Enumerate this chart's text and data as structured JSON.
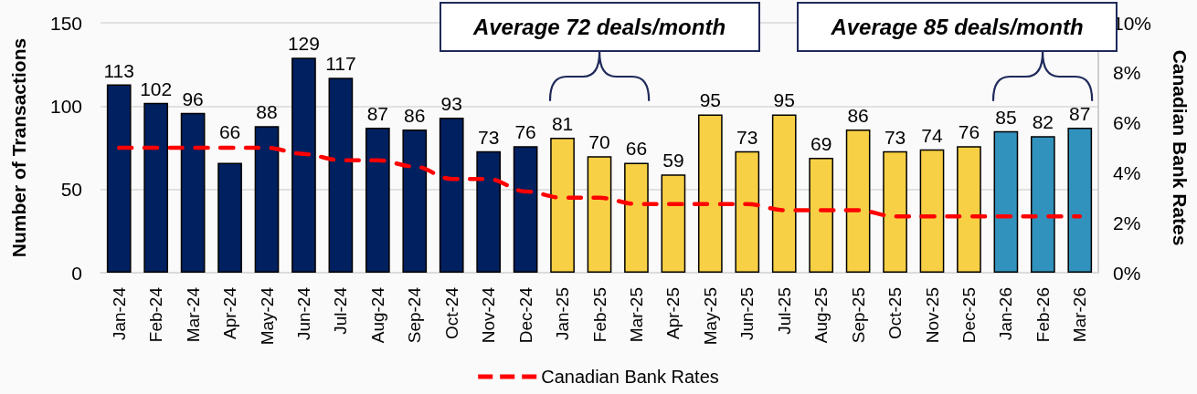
{
  "chart_data": {
    "type": "bar",
    "ylabel": "Number of Transactions",
    "y2label": "Canadian Bank Rates",
    "categories": [
      "Jan-24",
      "Feb-24",
      "Mar-24",
      "Apr-24",
      "May-24",
      "Jun-24",
      "Jul-24",
      "Aug-24",
      "Sep-24",
      "Oct-24",
      "Nov-24",
      "Dec-24",
      "Jan-25",
      "Feb-25",
      "Mar-25",
      "Apr-25",
      "May-25",
      "Jun-25",
      "Jul-25",
      "Aug-25",
      "Sep-25",
      "Oct-25",
      "Nov-25",
      "Dec-25",
      "Jan-26",
      "Feb-26",
      "Mar-26"
    ],
    "series": [
      {
        "colors": [
          "#002060",
          "#002060",
          "#002060",
          "#002060",
          "#002060",
          "#002060",
          "#002060",
          "#002060",
          "#002060",
          "#002060",
          "#002060",
          "#002060",
          "#f8d045",
          "#f8d045",
          "#f8d045",
          "#f8d045",
          "#f8d045",
          "#f8d045",
          "#f8d045",
          "#f8d045",
          "#f8d045",
          "#f8d045",
          "#f8d045",
          "#f8d045",
          "#3192bd",
          "#3192bd",
          "#3192bd"
        ],
        "values": [
          113,
          102,
          96,
          66,
          88,
          129,
          117,
          87,
          86,
          93,
          73,
          76,
          81,
          70,
          66,
          59,
          95,
          73,
          95,
          69,
          86,
          73,
          74,
          76,
          85,
          82,
          87
        ],
        "value_labels": [
          "113",
          "102",
          "96",
          "66",
          "88",
          "129",
          "117",
          "87",
          "86",
          "93",
          "73",
          "76",
          "81",
          "70",
          "66",
          "59",
          "95",
          "73",
          "95",
          "69",
          "86",
          "73",
          "74",
          "76",
          "85",
          "82",
          "87"
        ]
      },
      {
        "type": "line",
        "name": "Canadian Bank Rates",
        "axis": "y2",
        "color": "#ff0000",
        "values": [
          5,
          5,
          5,
          5,
          5,
          4.75,
          4.5,
          4.5,
          4.25,
          3.75,
          3.75,
          3.25,
          3,
          3,
          2.75,
          2.75,
          2.75,
          2.75,
          2.5,
          2.5,
          2.5,
          2.25,
          2.25,
          2.25,
          2.25,
          2.25,
          2.25
        ]
      }
    ],
    "ylim": [
      0,
      150
    ],
    "yticks": [
      0,
      50,
      100,
      150
    ],
    "y2lim": [
      0,
      10
    ],
    "y2ticks": [
      {
        "value": 0,
        "label": "0%"
      },
      {
        "value": 2,
        "label": "2%"
      },
      {
        "value": 4,
        "label": "4%"
      },
      {
        "value": 6,
        "label": "6%"
      },
      {
        "value": 8,
        "label": "8%"
      },
      {
        "value": 10,
        "label": "10%"
      }
    ],
    "grid": "y",
    "legend": "bottom",
    "line_style": "dashed",
    "annotations": [
      "Average 72 deals/month",
      "Average 85 deals/month"
    ]
  }
}
